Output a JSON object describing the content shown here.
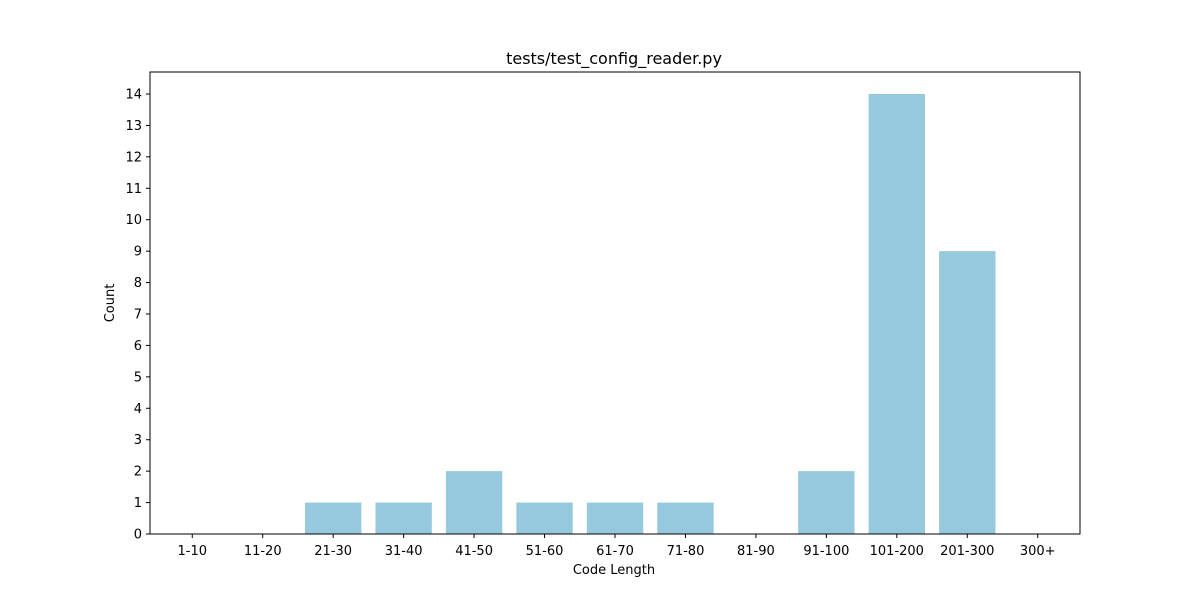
{
  "chart_data": {
    "type": "bar",
    "title": "tests/test_config_reader.py",
    "xlabel": "Code Length",
    "ylabel": "Count",
    "categories": [
      "1-10",
      "11-20",
      "21-30",
      "31-40",
      "41-50",
      "51-60",
      "61-70",
      "71-80",
      "81-90",
      "91-100",
      "101-200",
      "201-300",
      "300+"
    ],
    "values": [
      0,
      0,
      1,
      1,
      2,
      1,
      1,
      1,
      0,
      2,
      14,
      9,
      0
    ],
    "ylim": [
      0,
      14.7
    ],
    "yticks": [
      0,
      1,
      2,
      3,
      4,
      5,
      6,
      7,
      8,
      9,
      10,
      11,
      12,
      13,
      14
    ],
    "bar_color": "#96c9de",
    "grid": false,
    "legend": "none"
  }
}
